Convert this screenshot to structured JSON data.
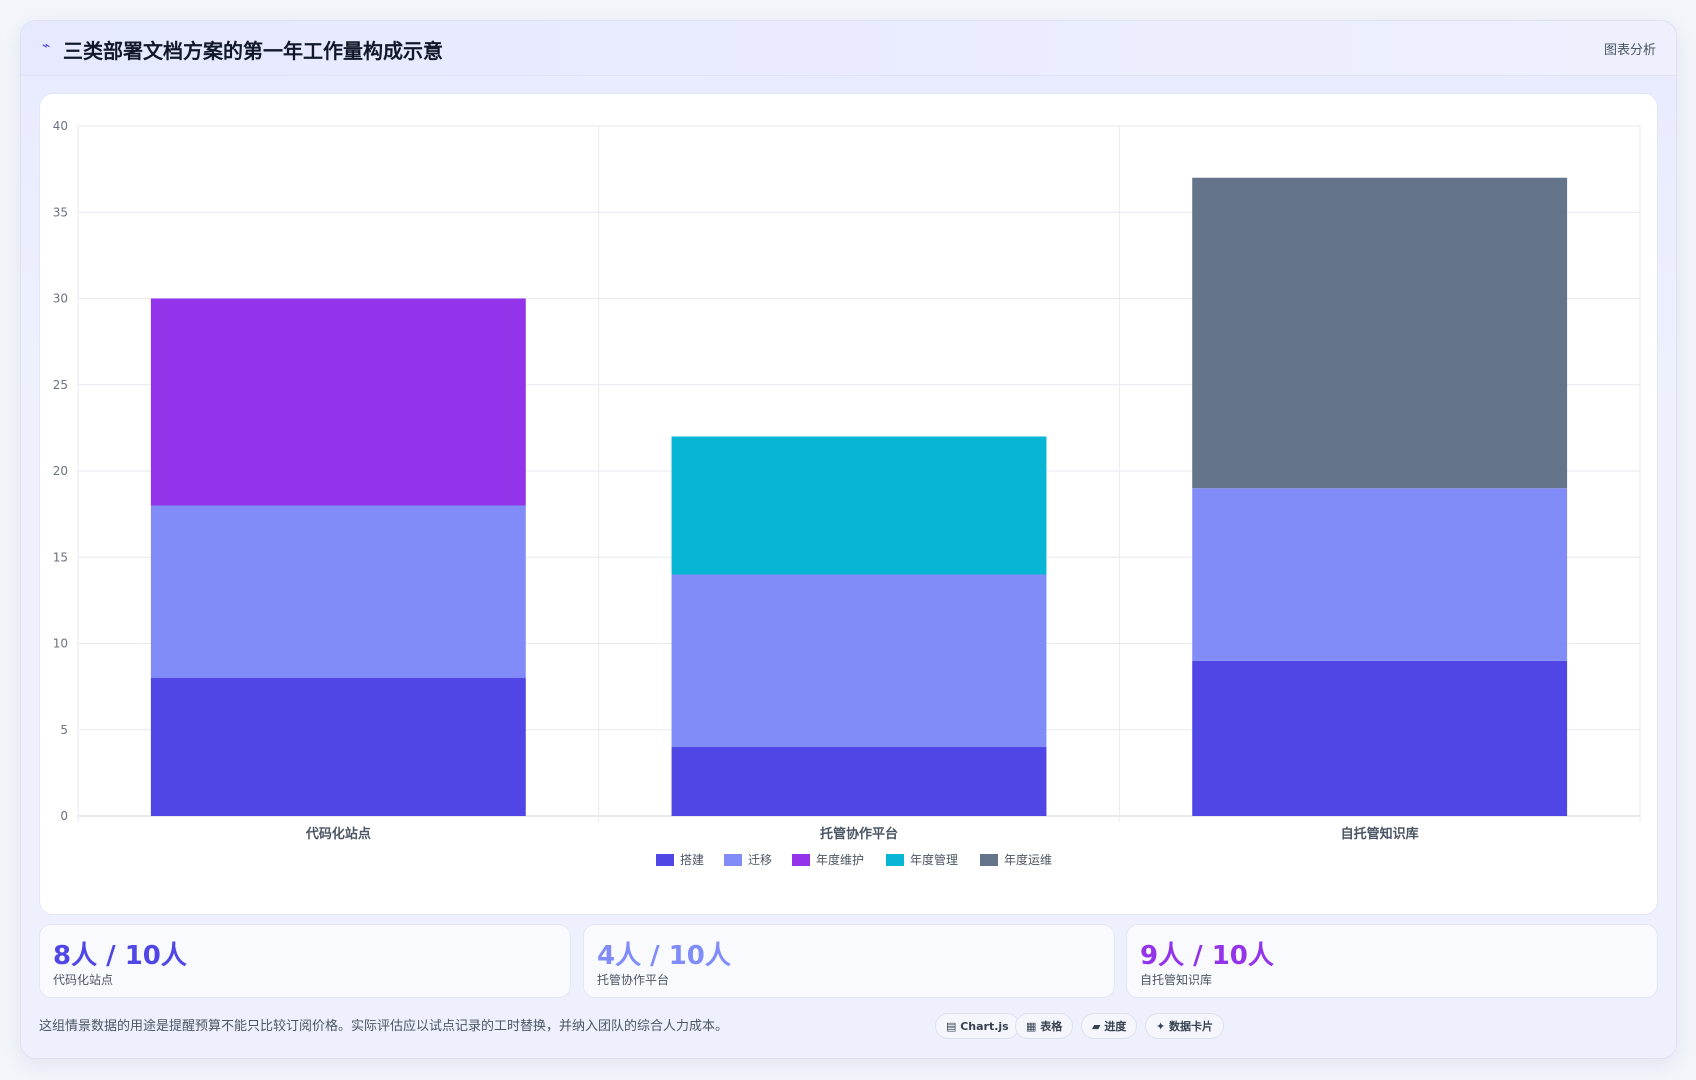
{
  "header": {
    "icon": "chart-line-icon",
    "title": "三类部署文档方案的第一年工作量构成示意",
    "right_label": "图表分析"
  },
  "chart_data": {
    "type": "bar",
    "stacked": true,
    "categories": [
      "代码化站点",
      "托管协作平台",
      "自托管知识库"
    ],
    "series": [
      {
        "name": "搭建",
        "color": "#4f46e5",
        "values": [
          8,
          4,
          9
        ]
      },
      {
        "name": "迁移",
        "color": "#818cf8",
        "values": [
          10,
          10,
          10
        ]
      },
      {
        "name": "年度维护",
        "color": "#9333ea",
        "values": [
          12,
          0,
          0
        ]
      },
      {
        "name": "年度管理",
        "color": "#06b6d4",
        "values": [
          0,
          8,
          0
        ]
      },
      {
        "name": "年度运维",
        "color": "#64748b",
        "values": [
          0,
          0,
          18
        ]
      }
    ],
    "ylim": [
      0,
      40
    ],
    "yticks": [
      0,
      5,
      10,
      15,
      20,
      25,
      30,
      35,
      40
    ],
    "grid": true,
    "legend_position": "bottom"
  },
  "stats": [
    {
      "value": "8人 / 10人",
      "label": "代码化站点",
      "color": "#4f46e5"
    },
    {
      "value": "4人 / 10人",
      "label": "托管协作平台",
      "color": "#818cf8"
    },
    {
      "value": "9人 / 10人",
      "label": "自托管知识库",
      "color": "#9333ea"
    }
  ],
  "footnote": "这组情景数据的用途是提醒预算不能只比较订阅价格。实际评估应以试点记录的工时替换，并纳入团队的综合人力成本。",
  "pills": [
    {
      "icon": "chart-icon",
      "label": "▤ Chart.js"
    },
    {
      "icon": "table-icon",
      "label": "▦ 表格"
    },
    {
      "icon": "progress-icon",
      "label": "▰ 进度"
    },
    {
      "icon": "card-icon",
      "label": "✦ 数据卡片"
    }
  ]
}
